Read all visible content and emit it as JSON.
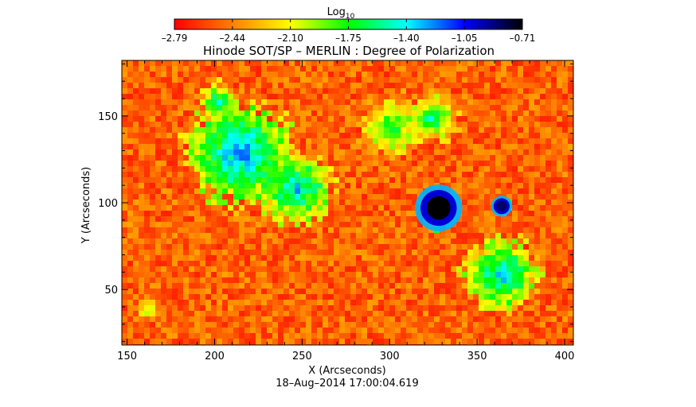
{
  "chart_data": {
    "type": "heatmap",
    "title": "Hinode SOT/SP – MERLIN : Degree of Polarization",
    "xlabel": "X (Arcseconds)",
    "ylabel": "Y (Arcseconds)",
    "timestamp": "18–Aug–2014 17:00:04.619",
    "xlim": [
      147,
      405
    ],
    "ylim": [
      18,
      182
    ],
    "x_ticks": [
      150,
      200,
      250,
      300,
      350,
      400
    ],
    "y_ticks": [
      50,
      100,
      150
    ],
    "colorbar": {
      "label_main": "Log",
      "label_sub": "10",
      "ticks": [
        "–2.79",
        "–2.44",
        "–2.10",
        "–1.75",
        "–1.40",
        "–1.05",
        "–0.71"
      ],
      "range": [
        -2.79,
        -0.71
      ],
      "colors": [
        "#ff0000",
        "#ff8000",
        "#ffff00",
        "#00ff00",
        "#00ffff",
        "#0000ff",
        "#000000"
      ]
    },
    "grid": false,
    "features": [
      {
        "kind": "sunspot",
        "x": 328,
        "y": 97,
        "radius": 9,
        "value": -0.71
      },
      {
        "kind": "pore",
        "x": 364,
        "y": 98,
        "radius": 4,
        "value": -0.85
      },
      {
        "kind": "plage",
        "x": 213,
        "y": 130,
        "radius": 28,
        "value": -1.2
      },
      {
        "kind": "plage",
        "x": 245,
        "y": 110,
        "radius": 20,
        "value": -1.3
      },
      {
        "kind": "plage",
        "x": 300,
        "y": 145,
        "radius": 18,
        "value": -1.6
      },
      {
        "kind": "plage",
        "x": 322,
        "y": 150,
        "radius": 14,
        "value": -1.5
      },
      {
        "kind": "plage",
        "x": 362,
        "y": 60,
        "radius": 20,
        "value": -1.3
      },
      {
        "kind": "plage",
        "x": 200,
        "y": 160,
        "radius": 10,
        "value": -1.4
      },
      {
        "kind": "plage",
        "x": 160,
        "y": 40,
        "radius": 8,
        "value": -1.9
      }
    ]
  }
}
